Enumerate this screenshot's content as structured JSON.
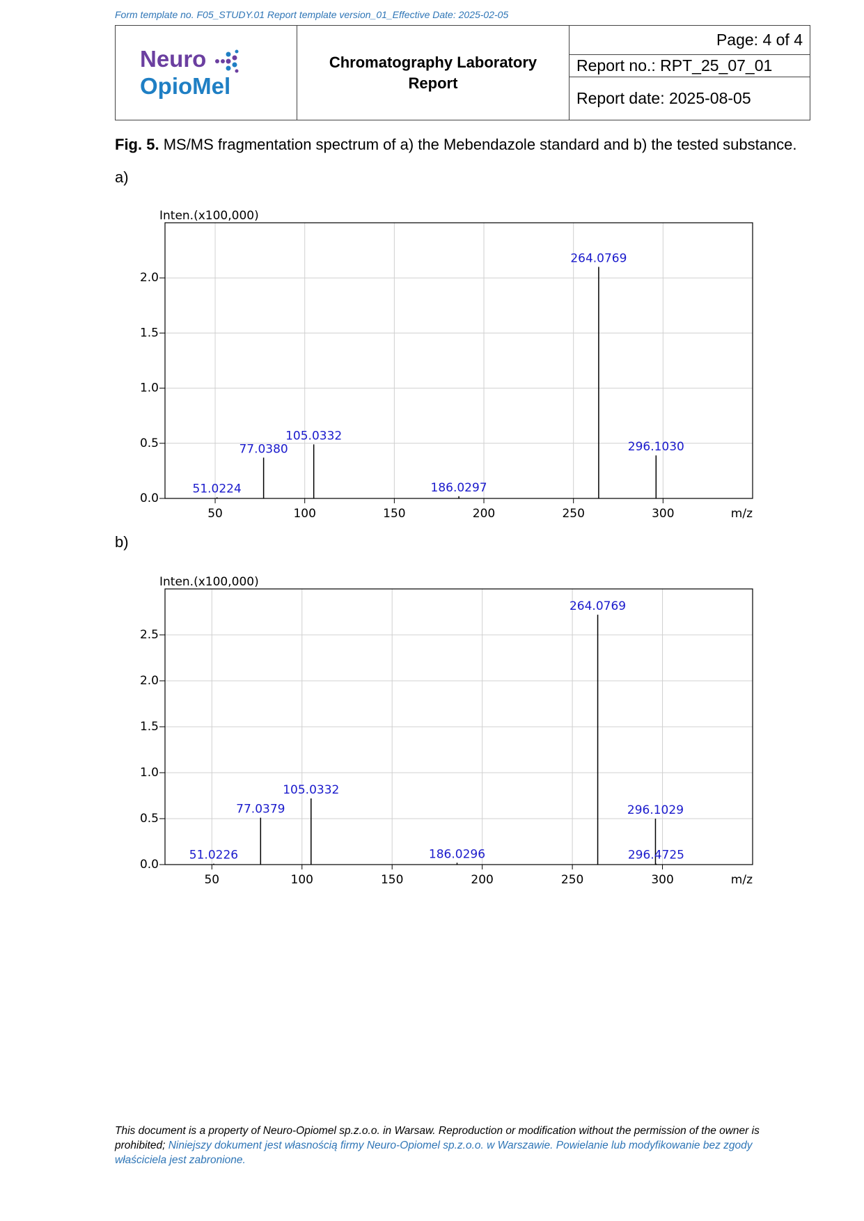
{
  "form_template": "Form template no. F05_STUDY.01 Report template version_01_Effective Date: 2025-02-05",
  "header": {
    "logo_line1": "Neuro",
    "logo_line2": "OpioMel",
    "title": "Chromatography Laboratory Report",
    "page": "Page: 4 of 4",
    "report_no": "Report no.: RPT_25_07_01",
    "report_date": "Report date: 2025-08-05"
  },
  "caption": {
    "label": "Fig. 5.",
    "text": "MS/MS fragmentation spectrum of a) the Mebendazole standard and b) the tested substance."
  },
  "panels": [
    "a)",
    "b)"
  ],
  "chart_data": [
    {
      "type": "bar",
      "y_label": "Inten.(x100,000)",
      "x_label": "m/z",
      "x": [
        51.0224,
        77.038,
        105.0332,
        186.0297,
        264.0769,
        296.103
      ],
      "x_labels": [
        "51.0224",
        "77.0380",
        "105.0332",
        "186.0297",
        "264.0769",
        "296.1030"
      ],
      "values": [
        0.01,
        0.37,
        0.49,
        0.02,
        2.1,
        0.39
      ],
      "color": "#000000",
      "label_color": "#1a1acc",
      "xlim": [
        22,
        350
      ],
      "xticks": [
        50,
        100,
        150,
        200,
        250,
        300
      ],
      "ylim": [
        0,
        2.5
      ],
      "yticks": [
        {
          "value": 0,
          "label": "0.0"
        },
        0.5,
        {
          "value": 1,
          "label": "1.0"
        },
        1.5,
        {
          "value": 2,
          "label": "2.0"
        }
      ],
      "grid": true
    },
    {
      "type": "bar",
      "y_label": "Inten.(x100,000)",
      "x_label": "m/z",
      "x": [
        51.0226,
        77.0379,
        105.0332,
        186.0296,
        264.0769,
        296.1029,
        296.4725
      ],
      "x_labels": [
        "51.0226",
        "77.0379",
        "105.0332",
        "186.0296",
        "264.0769",
        "296.1029",
        "296.4725"
      ],
      "values": [
        0.01,
        0.51,
        0.72,
        0.02,
        2.72,
        0.5,
        0.01
      ],
      "color": "#000000",
      "label_color": "#1a1acc",
      "xlim": [
        24,
        350
      ],
      "xticks": [
        50,
        100,
        150,
        200,
        250,
        300
      ],
      "ylim": [
        0,
        3
      ],
      "yticks": [
        {
          "value": 0,
          "label": "0.0"
        },
        0.5,
        {
          "value": 1,
          "label": "1.0"
        },
        1.5,
        {
          "value": 2,
          "label": "2.0"
        },
        2.5
      ],
      "grid": true
    }
  ],
  "footer": {
    "english": "This document is a property of Neuro-Opiomel sp.z.o.o. in Warsaw. Reproduction or modification without the permission of the owner is prohibited;",
    "polish": "Niniejszy dokument jest własnością firmy Neuro-Opiomel sp.z.o.o. w Warszawie. Powielanie lub modyfikowanie bez zgody właściciela jest zabronione."
  }
}
